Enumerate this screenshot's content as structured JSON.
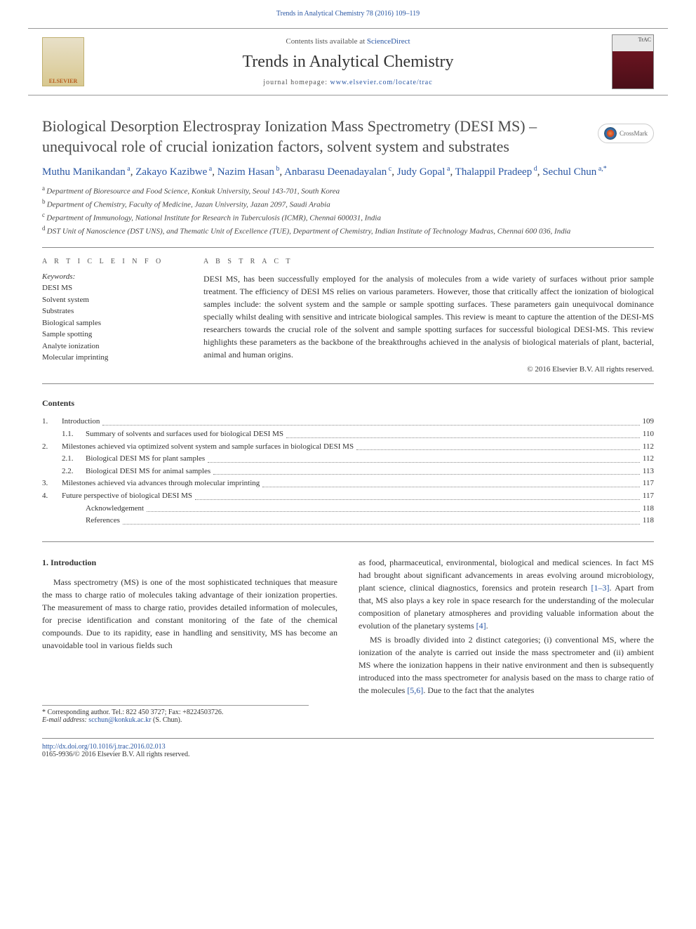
{
  "header": {
    "journal_ref": "Trends in Analytical Chemistry 78 (2016) 109–119",
    "contents_available": "Contents lists available at ",
    "sciencedirect": "ScienceDirect",
    "journal_title": "Trends in Analytical Chemistry",
    "homepage_prefix": "journal homepage: ",
    "homepage_url": "www.elsevier.com/locate/trac",
    "elsevier_label": "ELSEVIER",
    "crossmark": "CrossMark"
  },
  "article": {
    "title": "Biological Desorption Electrospray Ionization Mass Spectrometry (DESI MS) – unequivocal role of crucial ionization factors, solvent system and substrates",
    "authors_html": [
      {
        "name": "Muthu Manikandan",
        "aff": "a"
      },
      {
        "name": "Zakayo Kazibwe",
        "aff": "a"
      },
      {
        "name": "Nazim Hasan",
        "aff": "b"
      },
      {
        "name": "Anbarasu Deenadayalan",
        "aff": "c"
      },
      {
        "name": "Judy Gopal",
        "aff": "a"
      },
      {
        "name": "Thalappil Pradeep",
        "aff": "d"
      },
      {
        "name": "Sechul Chun",
        "aff": "a,*"
      }
    ],
    "affiliations": [
      {
        "sup": "a",
        "text": "Department of Bioresource and Food Science, Konkuk University, Seoul 143-701, South Korea"
      },
      {
        "sup": "b",
        "text": "Department of Chemistry, Faculty of Medicine, Jazan University, Jazan 2097, Saudi Arabia"
      },
      {
        "sup": "c",
        "text": "Department of Immunology, National Institute for Research in Tuberculosis (ICMR), Chennai 600031, India"
      },
      {
        "sup": "d",
        "text": "DST Unit of Nanoscience (DST UNS), and Thematic Unit of Excellence (TUE), Department of Chemistry, Indian Institute of Technology Madras, Chennai 600 036, India"
      }
    ]
  },
  "info": {
    "heading": "A R T I C L E   I N F O",
    "keywords_label": "Keywords:",
    "keywords": [
      "DESI MS",
      "Solvent system",
      "Substrates",
      "Biological samples",
      "Sample spotting",
      "Analyte ionization",
      "Molecular imprinting"
    ]
  },
  "abstract": {
    "heading": "A B S T R A C T",
    "text": "DESI MS, has been successfully employed for the analysis of molecules from a wide variety of surfaces without prior sample treatment. The efficiency of DESI MS relies on various parameters. However, those that critically affect the ionization of biological samples include: the solvent system and the sample or sample spotting surfaces. These parameters gain unequivocal dominance specially whilst dealing with sensitive and intricate biological samples. This review is meant to capture the attention of the DESI-MS researchers towards the crucial role of the solvent and sample spotting surfaces for successful biological DESI-MS. This review highlights these parameters as the backbone of the breakthroughs achieved in the analysis of biological materials of plant, bacterial, animal and human origins.",
    "copyright": "© 2016 Elsevier B.V. All rights reserved."
  },
  "contents": {
    "title": "Contents",
    "items": [
      {
        "num": "1.",
        "label": "Introduction",
        "page": "109",
        "indent": 0
      },
      {
        "num": "1.1.",
        "label": "Summary of solvents and surfaces used for biological DESI MS",
        "page": "110",
        "indent": 1
      },
      {
        "num": "2.",
        "label": "Milestones achieved via optimized solvent system and sample surfaces in biological DESI MS",
        "page": "112",
        "indent": 0
      },
      {
        "num": "2.1.",
        "label": "Biological DESI MS for plant samples",
        "page": "112",
        "indent": 1
      },
      {
        "num": "2.2.",
        "label": "Biological DESI MS for animal samples",
        "page": "113",
        "indent": 1
      },
      {
        "num": "3.",
        "label": "Milestones achieved via advances through molecular imprinting",
        "page": "117",
        "indent": 0
      },
      {
        "num": "4.",
        "label": "Future perspective of biological DESI MS",
        "page": "117",
        "indent": 0
      },
      {
        "num": "",
        "label": "Acknowledgement",
        "page": "118",
        "indent": 1
      },
      {
        "num": "",
        "label": "References",
        "page": "118",
        "indent": 1
      }
    ]
  },
  "body": {
    "section_heading": "1. Introduction",
    "col1_p1": "Mass spectrometry (MS) is one of the most sophisticated techniques that measure the mass to charge ratio of molecules taking advantage of their ionization properties. The measurement of mass to charge ratio, provides detailed information of molecules, for precise identification and constant monitoring of the fate of the chemical compounds. Due to its rapidity, ease in handling and sensitivity, MS has become an unavoidable tool in various fields such",
    "col2_p1_pre": "as food, pharmaceutical, environmental, biological and medical sciences. In fact MS had brought about significant advancements in areas evolving around microbiology, plant science, clinical diagnostics, forensics and protein research ",
    "col2_p1_ref1": "[1–3]",
    "col2_p1_mid": ". Apart from that, MS also plays a key role in space research for the understanding of the molecular composition of planetary atmospheres and providing valuable information about the evolution of the planetary systems ",
    "col2_p1_ref2": "[4]",
    "col2_p1_end": ".",
    "col2_p2_pre": "MS is broadly divided into 2 distinct categories; (i) conventional MS, where the ionization of the analyte is carried out inside the mass spectrometer and (ii) ambient MS where the ionization happens in their native environment and then is subsequently introduced into the mass spectrometer for analysis based on the mass to charge ratio of the molecules ",
    "col2_p2_ref": "[5,6]",
    "col2_p2_end": ". Due to the fact that the analytes"
  },
  "corresponding": {
    "label": "* Corresponding author. Tel.: 822 450 3727; Fax: +8224503726.",
    "email_label": "E-mail address: ",
    "email": "scchun@konkuk.ac.kr",
    "email_suffix": " (S. Chun)."
  },
  "footer": {
    "doi": "http://dx.doi.org/10.1016/j.trac.2016.02.013",
    "issn_line": "0165-9936/© 2016 Elsevier B.V. All rights reserved."
  },
  "colors": {
    "link": "#2956a3",
    "text": "#333333",
    "rule": "#888888"
  }
}
